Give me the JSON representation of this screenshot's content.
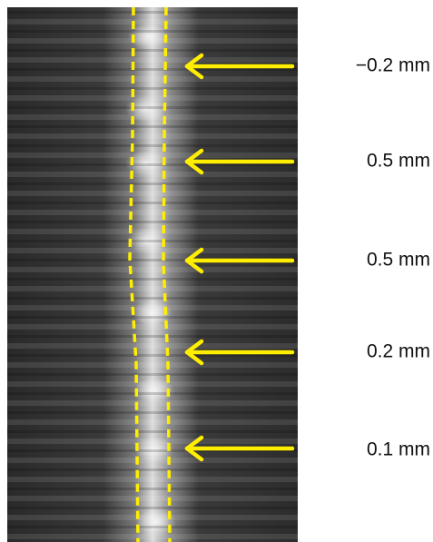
{
  "labels": [
    "−0.2 mm",
    "0.5 mm",
    "0.5 mm",
    "0.2 mm",
    "0.1 mm"
  ]
}
